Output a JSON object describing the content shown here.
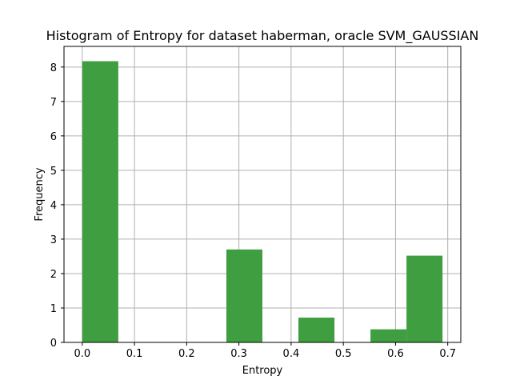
{
  "chart_data": {
    "type": "bar",
    "title": "Histogram of Entropy for dataset haberman, oracle SVM_GAUSSIAN",
    "xlabel": "Entropy",
    "ylabel": "Frequency",
    "bar_color": "#3f9e3f",
    "grid": true,
    "xlim": [
      -0.035,
      0.725
    ],
    "ylim": [
      0,
      8.6
    ],
    "x_ticks": [
      0.0,
      0.1,
      0.2,
      0.3,
      0.4,
      0.5,
      0.6,
      0.7
    ],
    "x_tick_labels": [
      "0.0",
      "0.1",
      "0.2",
      "0.3",
      "0.4",
      "0.5",
      "0.6",
      "0.7"
    ],
    "y_ticks": [
      0,
      1,
      2,
      3,
      4,
      5,
      6,
      7,
      8
    ],
    "y_tick_labels": [
      "0",
      "1",
      "2",
      "3",
      "4",
      "5",
      "6",
      "7",
      "8"
    ],
    "bins": [
      {
        "start": 0.0,
        "end": 0.069,
        "value": 8.17
      },
      {
        "start": 0.069,
        "end": 0.138,
        "value": 0
      },
      {
        "start": 0.138,
        "end": 0.207,
        "value": 0
      },
      {
        "start": 0.207,
        "end": 0.276,
        "value": 0
      },
      {
        "start": 0.276,
        "end": 0.345,
        "value": 2.7
      },
      {
        "start": 0.345,
        "end": 0.414,
        "value": 0
      },
      {
        "start": 0.414,
        "end": 0.483,
        "value": 0.72
      },
      {
        "start": 0.483,
        "end": 0.552,
        "value": 0
      },
      {
        "start": 0.552,
        "end": 0.621,
        "value": 0.38
      },
      {
        "start": 0.621,
        "end": 0.69,
        "value": 2.52
      }
    ]
  }
}
